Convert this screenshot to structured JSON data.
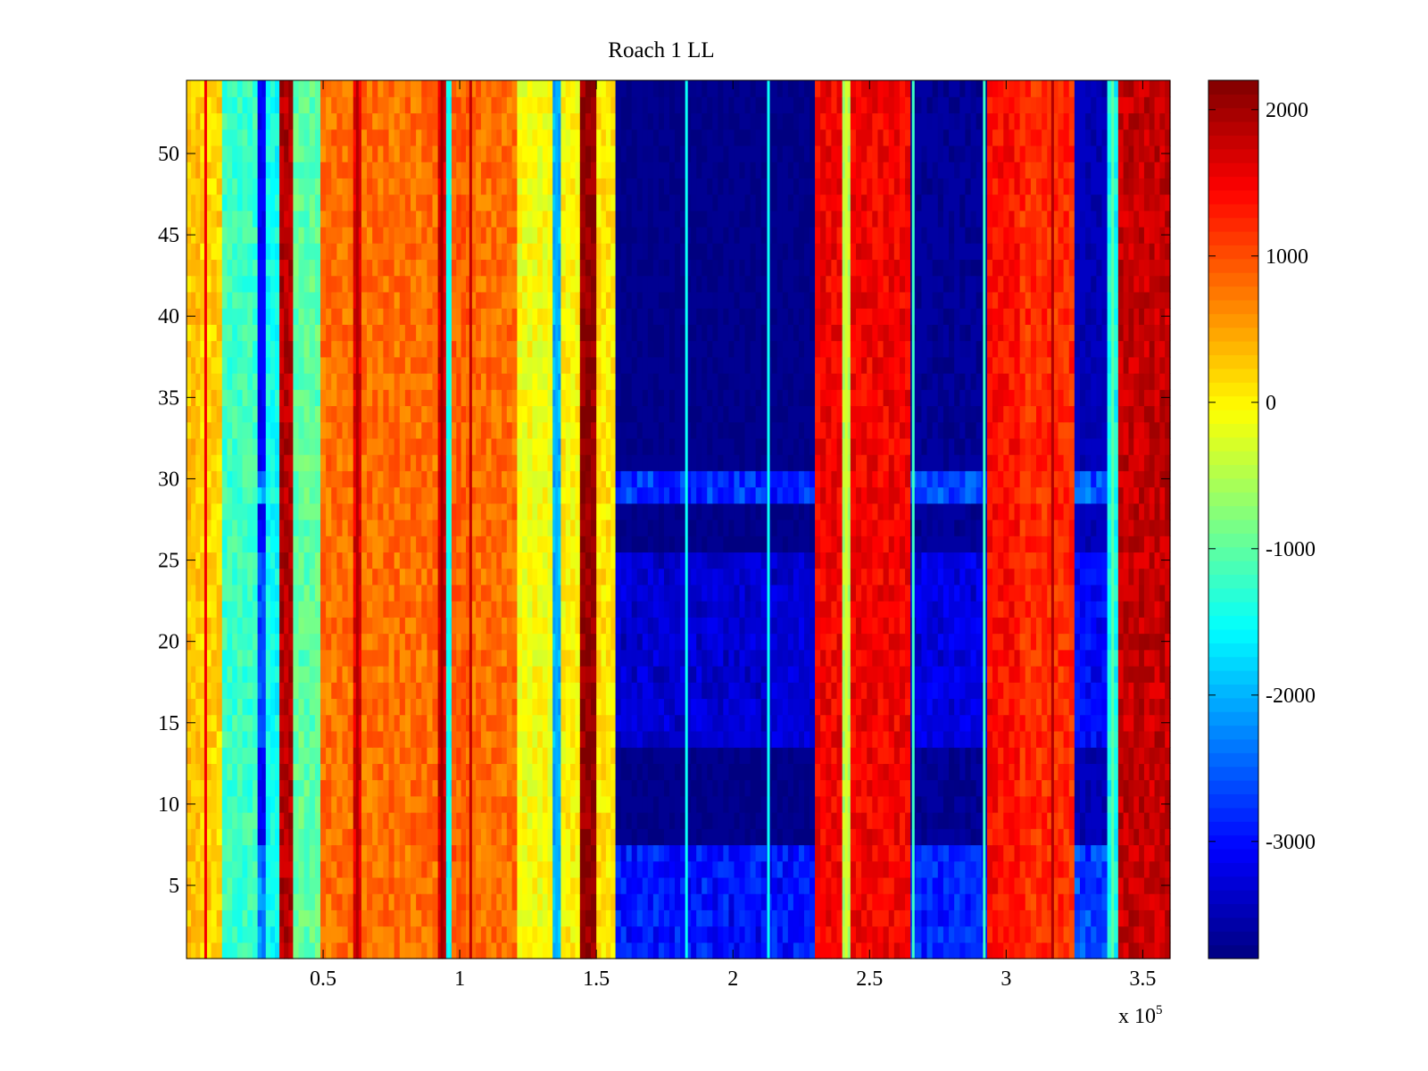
{
  "chart_data": {
    "type": "heatmap",
    "title": "Roach 1 LL",
    "xlabel": "",
    "ylabel": "",
    "x_exponent_label": {
      "base": "x 10",
      "exponent": "5"
    },
    "xlim": [
      0,
      360000
    ],
    "ylim": [
      0.5,
      54.5
    ],
    "x_ticks": [
      50000,
      100000,
      150000,
      200000,
      250000,
      300000,
      350000
    ],
    "x_tick_labels": [
      "0.5",
      "1",
      "1.5",
      "2",
      "2.5",
      "3",
      "3.5"
    ],
    "y_ticks": [
      5,
      10,
      15,
      20,
      25,
      30,
      35,
      40,
      45,
      50
    ],
    "y_tick_labels": [
      "5",
      "10",
      "15",
      "20",
      "25",
      "30",
      "35",
      "40",
      "45",
      "50"
    ],
    "rows": 54,
    "colormap": "jet",
    "clim": [
      -3800,
      2200
    ],
    "colorbar": {
      "ticks": [
        2000,
        1000,
        0,
        -1000,
        -2000,
        -3000
      ],
      "tick_labels": [
        "2000",
        "1000",
        "0",
        "-1000",
        "-2000",
        "-3000"
      ]
    },
    "column_bands": [
      {
        "x": [
          0,
          5000
        ],
        "value": 300
      },
      {
        "x": [
          5000,
          13000
        ],
        "value": 200
      },
      {
        "x": [
          13000,
          26000
        ],
        "value": -1200
      },
      {
        "x": [
          26000,
          29000
        ],
        "value": -3000
      },
      {
        "x": [
          29000,
          34000
        ],
        "value": -1500
      },
      {
        "x": [
          34000,
          39000
        ],
        "value": 1900
      },
      {
        "x": [
          39000,
          49000
        ],
        "value": -1000
      },
      {
        "x": [
          49000,
          61000
        ],
        "value": 800
      },
      {
        "x": [
          61000,
          64000
        ],
        "value": 1600
      },
      {
        "x": [
          64000,
          92000
        ],
        "value": 800
      },
      {
        "x": [
          92000,
          95000
        ],
        "value": 1700
      },
      {
        "x": [
          95000,
          97000
        ],
        "value": -1500
      },
      {
        "x": [
          97000,
          104000
        ],
        "value": 900
      },
      {
        "x": [
          104000,
          121000
        ],
        "value": 800
      },
      {
        "x": [
          121000,
          134000
        ],
        "value": -100
      },
      {
        "x": [
          134000,
          137000
        ],
        "value": -2000
      },
      {
        "x": [
          137000,
          144000
        ],
        "value": 0
      },
      {
        "x": [
          144000,
          150000
        ],
        "value": 2100
      },
      {
        "x": [
          150000,
          157000
        ],
        "value": 100
      },
      {
        "x": [
          157000,
          230000
        ],
        "value": -3700
      },
      {
        "x": [
          230000,
          240000
        ],
        "value": 1500
      },
      {
        "x": [
          240000,
          243000
        ],
        "value": -500
      },
      {
        "x": [
          243000,
          265000
        ],
        "value": 1500
      },
      {
        "x": [
          265000,
          293000
        ],
        "value": -3600
      },
      {
        "x": [
          293000,
          305000
        ],
        "value": 1400
      },
      {
        "x": [
          305000,
          325000
        ],
        "value": 1200
      },
      {
        "x": [
          325000,
          337000
        ],
        "value": -3400
      },
      {
        "x": [
          337000,
          341000
        ],
        "value": -1500
      },
      {
        "x": [
          341000,
          360000
        ],
        "value": 1800
      }
    ],
    "thin_lines": [
      {
        "x": 7000,
        "value": 1500
      },
      {
        "x": 62500,
        "value": 1900
      },
      {
        "x": 93500,
        "value": 2000
      },
      {
        "x": 96000,
        "value": -1500
      },
      {
        "x": 104000,
        "value": 1800
      },
      {
        "x": 135500,
        "value": -2000
      },
      {
        "x": 183000,
        "value": -1500
      },
      {
        "x": 213000,
        "value": -1500
      },
      {
        "x": 241500,
        "value": -300
      },
      {
        "x": 266000,
        "value": -1200
      },
      {
        "x": 292000,
        "value": -1200
      },
      {
        "x": 317000,
        "value": 1900
      },
      {
        "x": 339000,
        "value": -1000
      }
    ],
    "row_modulation": [
      {
        "rows": [
          1,
          7
        ],
        "value": 900,
        "applies_to": "blue bands"
      },
      {
        "rows": [
          8,
          13
        ],
        "value": 0,
        "applies_to": "blue bands"
      },
      {
        "rows": [
          14,
          25
        ],
        "value": 500,
        "applies_to": "blue bands"
      },
      {
        "rows": [
          26,
          28
        ],
        "value": 0,
        "applies_to": "blue bands"
      },
      {
        "rows": [
          29,
          30
        ],
        "value": 1100,
        "applies_to": "blue bands"
      },
      {
        "rows": [
          31,
          54
        ],
        "value": 0,
        "applies_to": "blue bands"
      }
    ]
  }
}
